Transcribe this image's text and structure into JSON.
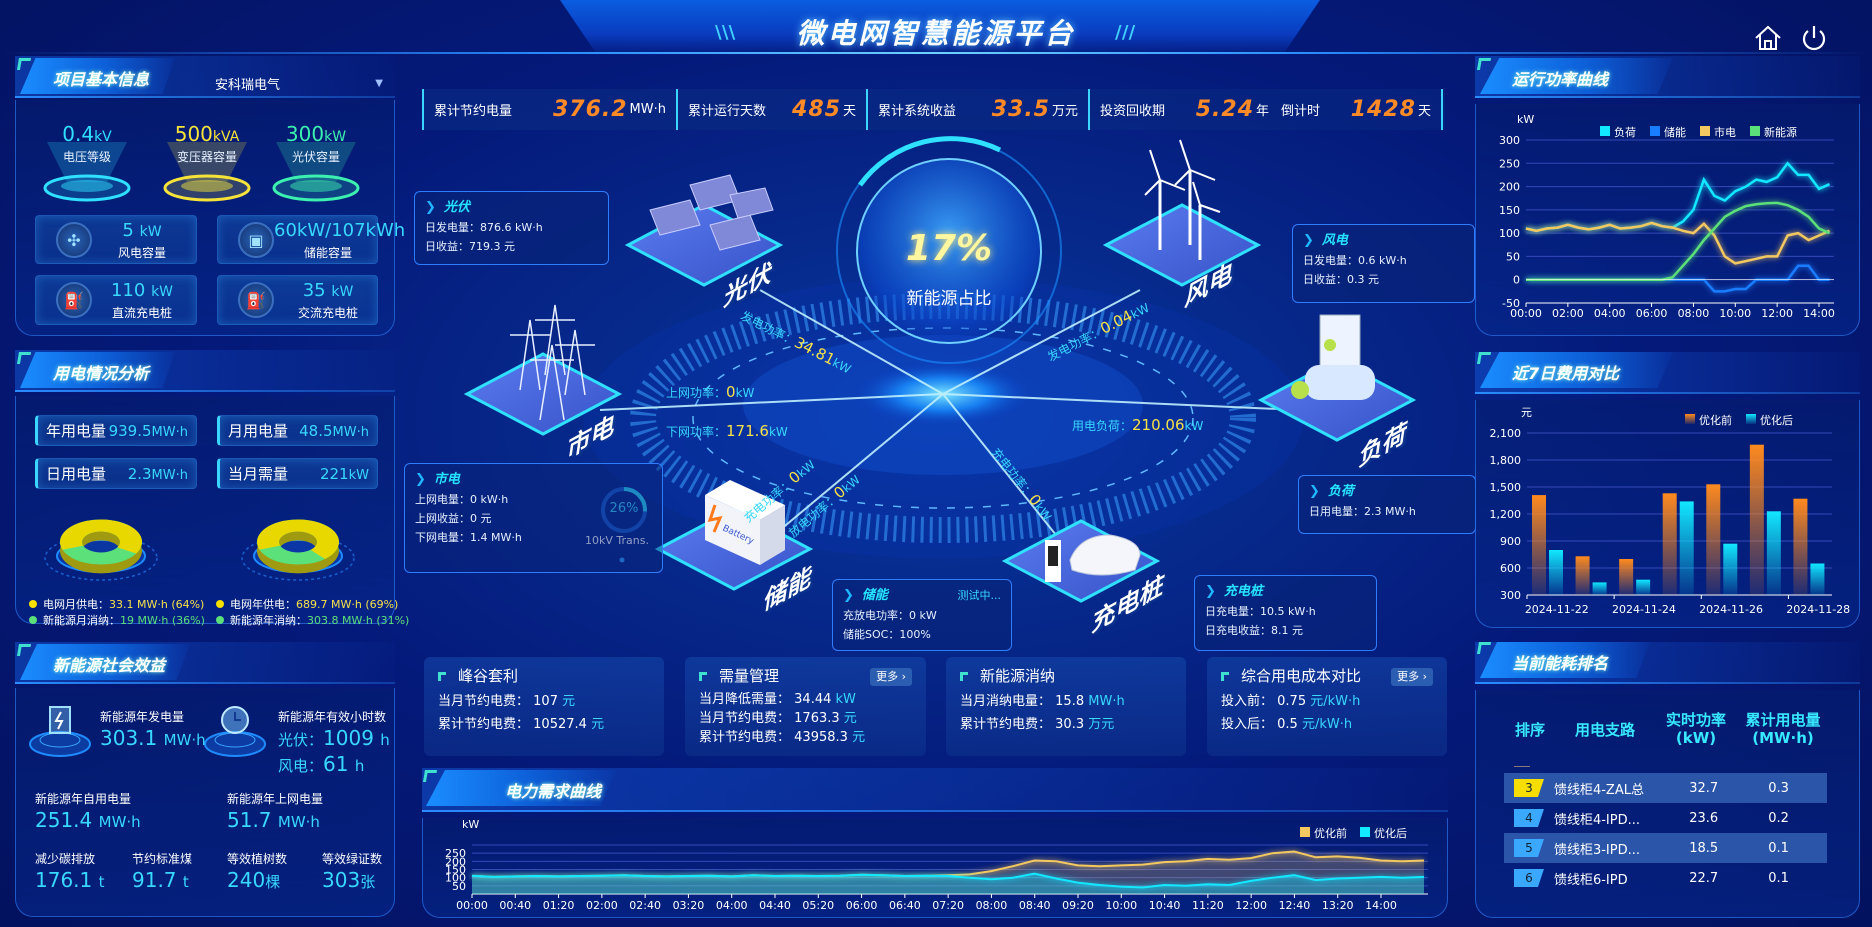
{
  "header": {
    "title": "微电网智慧能源平台",
    "icons": [
      "home-icon",
      "power-icon"
    ]
  },
  "colors": {
    "accent": "#38d8ff",
    "orange": "#ff8a26",
    "yellow": "#f6e24a",
    "green": "#5ce07a",
    "background": "#04197a"
  },
  "project": {
    "title": "项目基本信息",
    "company": "安科瑞电气",
    "gauges": [
      {
        "value": "0.4",
        "unit": "kV",
        "label": "电压等级",
        "color": "#2fe0ff"
      },
      {
        "value": "500",
        "unit": "kVA",
        "label": "变压器容量",
        "color": "#f5e33a"
      },
      {
        "value": "300",
        "unit": "kW",
        "label": "光伏容量",
        "color": "#3cf0b0"
      }
    ],
    "cards": [
      {
        "value": "5",
        "unit": "kW",
        "label": "风电容量",
        "icon": "wind-turbine-icon"
      },
      {
        "value": "60kW/107kWh",
        "unit": "",
        "label": "储能容量",
        "icon": "battery-icon"
      },
      {
        "value": "110",
        "unit": "kW",
        "label": "直流充电桩",
        "icon": "charging-pile-icon"
      },
      {
        "value": "35",
        "unit": "kW",
        "label": "交流充电桩",
        "icon": "charging-pile-icon"
      }
    ]
  },
  "usage": {
    "title": "用电情况分析",
    "stats": [
      {
        "label": "年用电量",
        "value": "939.5",
        "unit": "MW·h"
      },
      {
        "label": "月用电量",
        "value": "48.5",
        "unit": "MW·h"
      },
      {
        "label": "日用电量",
        "value": "2.3",
        "unit": "MW·h"
      },
      {
        "label": "当月需量",
        "value": "221",
        "unit": "kW"
      }
    ],
    "donuts": [
      {
        "grid_label": "电网月供电：",
        "grid_value": "33.1 MW·h (64%)",
        "grid_pct": 64,
        "new_label": "新能源月消纳：",
        "new_value": "19 MW·h (36%)",
        "new_pct": 36
      },
      {
        "grid_label": "电网年供电：",
        "grid_value": "689.7 MW·h (69%)",
        "grid_pct": 69,
        "new_label": "新能源年消纳：",
        "new_value": "303.8 MW·h (31%)",
        "new_pct": 31
      }
    ]
  },
  "benefit": {
    "title": "新能源社会效益",
    "annual_gen": {
      "label": "新能源年发电量",
      "value": "303.1",
      "unit": "MW·h"
    },
    "hours": {
      "label": "新能源年有效小时数",
      "pv_label": "光伏：",
      "pv_value": "1009",
      "pv_unit": "h",
      "wind_label": "风电：",
      "wind_value": "61",
      "wind_unit": "h"
    },
    "self_use": {
      "label": "新能源年自用电量",
      "value": "251.4",
      "unit": "MW·h"
    },
    "grid_feed": {
      "label": "新能源年上网电量",
      "value": "51.7",
      "unit": "MW·h"
    },
    "carbon": {
      "label": "减少碳排放",
      "value": "176.1",
      "unit": "t"
    },
    "coal": {
      "label": "节约标准煤",
      "value": "91.7",
      "unit": "t"
    },
    "trees": {
      "label": "等效植树数",
      "value": "240",
      "unit": "棵"
    },
    "certs": {
      "label": "等效绿证数",
      "value": "303",
      "unit": "张"
    }
  },
  "summary": [
    {
      "label": "累计节约电量",
      "value": "376.2",
      "unit": "MW·h"
    },
    {
      "label": "累计运行天数",
      "value": "485",
      "unit": "天"
    },
    {
      "label": "累计系统收益",
      "value": "33.5",
      "unit": "万元"
    },
    {
      "label": "投资回收期",
      "value": "5.24",
      "unit": "年"
    },
    {
      "label": "倒计时",
      "value": "1428",
      "unit": "天"
    }
  ],
  "diagram": {
    "ratio": "17%",
    "ratio_label": "新能源占比",
    "nodes": {
      "pv": "光伏",
      "wind": "风电",
      "grid": "市电",
      "load": "负荷",
      "storage": "储能",
      "charger": "充电桩"
    },
    "flows": {
      "pv": {
        "label": "发电功率：",
        "value": "34.81",
        "unit": "kW"
      },
      "wind": {
        "label": "发电功率：",
        "value": "0.04",
        "unit": "kW"
      },
      "grid_up": {
        "label": "上网功率：",
        "value": "0",
        "unit": "kW"
      },
      "grid_down": {
        "label": "下网功率：",
        "value": "171.6",
        "unit": "kW"
      },
      "load": {
        "label": "用电负荷：",
        "value": "210.06",
        "unit": "kW"
      },
      "storage_charge": {
        "label": "充电功率：",
        "value": "0",
        "unit": "kW"
      },
      "storage_discharge": {
        "label": "放电功率：",
        "value": "0",
        "unit": "kW"
      },
      "charger": {
        "label": "充电功率：",
        "value": "0",
        "unit": "kW"
      }
    },
    "boxes": {
      "pv": {
        "title": "光伏",
        "lines": [
          "日发电量：876.6 kW·h",
          "日收益：719.3 元"
        ]
      },
      "wind": {
        "title": "风电",
        "lines": [
          "日发电量：0.6 kW·h",
          "日收益：0.3 元"
        ]
      },
      "grid": {
        "title": "市电",
        "lines": [
          "上网电量：0 kW·h",
          "上网收益：0 元",
          "下网电量：1.4 MW·h"
        ]
      },
      "load": {
        "title": "负荷",
        "lines": [
          "日用电量：2.3 MW·h"
        ]
      },
      "storage": {
        "title": "储能",
        "status": "测试中...",
        "lines": [
          "充放电功率：0 kW",
          "储能SOC：100%"
        ]
      },
      "charger": {
        "title": "充电桩",
        "lines": [
          "日充电量：10.5 kW·h",
          "日充电收益：8.1 元"
        ]
      }
    },
    "transformer": {
      "pct_text": "26%",
      "pct": 26,
      "label": "10kV Trans."
    },
    "battery_text": "Battery"
  },
  "cards": [
    {
      "title": "峰谷套利",
      "rows": [
        {
          "label": "当月节约电费：",
          "value": "107",
          "unit": "元"
        },
        {
          "label": "累计节约电费：",
          "value": "10527.4",
          "unit": "元"
        }
      ]
    },
    {
      "title": "需量管理",
      "more": "更多",
      "rows": [
        {
          "label": "当月降低需量：",
          "value": "34.44",
          "unit": "kW"
        },
        {
          "label": "当月节约电费：",
          "value": "1763.3",
          "unit": "元"
        },
        {
          "label": "累计节约电费：",
          "value": "43958.3",
          "unit": "元"
        }
      ]
    },
    {
      "title": "新能源消纳",
      "rows": [
        {
          "label": "当月消纳电量：",
          "value": "15.8",
          "unit": "MW·h"
        },
        {
          "label": "累计节约电费：",
          "value": "30.3",
          "unit": "万元"
        }
      ]
    },
    {
      "title": "综合用电成本对比",
      "more": "更多",
      "rows": [
        {
          "label": "投入前：",
          "value": "0.75",
          "unit": "元/kW·h"
        },
        {
          "label": "投入后：",
          "value": "0.5",
          "unit": "元/kW·h"
        }
      ]
    }
  ],
  "panels": {
    "power_title": "运行功率曲线",
    "cost_title": "近7日费用对比",
    "demand_title": "电力需求曲线",
    "ranking_title": "当前能耗排名"
  },
  "ranking": {
    "headers": [
      "排序",
      "用电支路",
      "实时功率",
      "(kW)",
      "累计用电量",
      "(MW·h)"
    ],
    "rows": [
      {
        "rank": "3",
        "name": "馈线柜4-ZAL总",
        "power": "32.7",
        "energy": "0.3"
      },
      {
        "rank": "4",
        "name": "馈线柜4-IPD...",
        "power": "23.6",
        "energy": "0.2"
      },
      {
        "rank": "5",
        "name": "馈线柜3-IPD...",
        "power": "18.5",
        "energy": "0.1"
      },
      {
        "rank": "6",
        "name": "馈线柜6-IPD",
        "power": "22.7",
        "energy": "0.1"
      }
    ]
  },
  "chart_data": [
    {
      "id": "power",
      "type": "line",
      "ylabel": "kW",
      "ylim": [
        -50,
        300
      ],
      "yticks": [
        "300",
        "250",
        "200",
        "150",
        "100",
        "50",
        "0",
        "-50"
      ],
      "xticks": [
        "00:00",
        "02:00",
        "04:00",
        "06:00",
        "08:00",
        "10:00",
        "12:00",
        "14:00"
      ],
      "x": [
        "00:00",
        "00:30",
        "01:00",
        "01:30",
        "02:00",
        "02:30",
        "03:00",
        "03:30",
        "04:00",
        "04:30",
        "05:00",
        "05:30",
        "06:00",
        "06:30",
        "07:00",
        "07:30",
        "08:00",
        "08:30",
        "09:00",
        "09:30",
        "10:00",
        "10:30",
        "11:00",
        "11:30",
        "12:00",
        "12:30",
        "13:00",
        "13:30",
        "14:00",
        "14:30"
      ],
      "legend": "top",
      "series": [
        {
          "name": "负荷",
          "color": "#12e8ff",
          "values": [
            110,
            105,
            110,
            112,
            118,
            112,
            108,
            112,
            118,
            110,
            112,
            115,
            122,
            115,
            112,
            125,
            150,
            215,
            180,
            170,
            190,
            200,
            215,
            210,
            220,
            250,
            225,
            225,
            195,
            205
          ]
        },
        {
          "name": "储能",
          "color": "#1a7cff",
          "values": [
            0,
            0,
            0,
            0,
            0,
            0,
            0,
            0,
            0,
            0,
            0,
            0,
            0,
            0,
            0,
            0,
            0,
            0,
            -25,
            -25,
            -20,
            -20,
            0,
            0,
            0,
            0,
            30,
            30,
            0,
            0
          ]
        },
        {
          "name": "市电",
          "color": "#f3c860",
          "values": [
            110,
            105,
            110,
            112,
            118,
            112,
            108,
            112,
            118,
            110,
            112,
            115,
            122,
            115,
            112,
            105,
            100,
            120,
            95,
            50,
            35,
            40,
            45,
            50,
            50,
            95,
            100,
            85,
            95,
            105
          ]
        },
        {
          "name": "新能源",
          "color": "#5ce07a",
          "values": [
            0,
            0,
            0,
            0,
            0,
            0,
            0,
            0,
            0,
            0,
            0,
            0,
            0,
            0,
            5,
            30,
            55,
            85,
            110,
            135,
            148,
            158,
            162,
            164,
            165,
            160,
            150,
            135,
            110,
            100
          ]
        }
      ]
    },
    {
      "id": "cost",
      "type": "bar",
      "ylabel": "元",
      "ylim": [
        300,
        2100
      ],
      "yticks": [
        "2,100",
        "1,800",
        "1,500",
        "1,200",
        "900",
        "600",
        "300"
      ],
      "categories": [
        "2024-11-22",
        "2024-11-23",
        "2024-11-24",
        "2024-11-25",
        "2024-11-26",
        "2024-11-27",
        "2024-11-28"
      ],
      "xticks": [
        "2024-11-22",
        "2024-11-24",
        "2024-11-26",
        "2024-11-28"
      ],
      "legend": "top-right",
      "series": [
        {
          "name": "优化前",
          "color": "#ff8a1e",
          "values": [
            1410,
            730,
            700,
            1430,
            1530,
            1970,
            1370
          ]
        },
        {
          "name": "优化后",
          "color": "#12e8ff",
          "values": [
            800,
            440,
            470,
            1340,
            870,
            1230,
            650
          ]
        }
      ]
    },
    {
      "id": "demand",
      "type": "area",
      "ylabel": "kW",
      "ylim": [
        0,
        300
      ],
      "yticks": [
        "250",
        "200",
        "150",
        "100",
        "50"
      ],
      "xticks": [
        "00:00",
        "00:40",
        "01:20",
        "02:00",
        "02:40",
        "03:20",
        "04:00",
        "04:40",
        "05:20",
        "06:00",
        "06:40",
        "07:20",
        "08:00",
        "08:40",
        "09:20",
        "10:00",
        "10:40",
        "11:20",
        "12:00",
        "12:40",
        "13:20",
        "14:00"
      ],
      "legend": "top-right",
      "series": [
        {
          "name": "优化前",
          "color": "#f3c860",
          "values": [
            112,
            105,
            108,
            110,
            108,
            110,
            112,
            115,
            110,
            108,
            110,
            112,
            108,
            115,
            110,
            112,
            110,
            112,
            118,
            115,
            110,
            112,
            115,
            120,
            140,
            170,
            205,
            200,
            175,
            170,
            175,
            180,
            195,
            200,
            215,
            210,
            220,
            250,
            260,
            225,
            230,
            222,
            205,
            200,
            205
          ]
        },
        {
          "name": "优化后",
          "color": "#12e8ff",
          "values": [
            112,
            105,
            108,
            110,
            108,
            110,
            112,
            115,
            110,
            108,
            110,
            112,
            108,
            115,
            110,
            112,
            110,
            112,
            118,
            115,
            110,
            112,
            110,
            100,
            90,
            100,
            125,
            95,
            70,
            55,
            45,
            40,
            55,
            50,
            60,
            55,
            80,
            100,
            115,
            85,
            95,
            100,
            105,
            100,
            105
          ]
        }
      ]
    }
  ]
}
